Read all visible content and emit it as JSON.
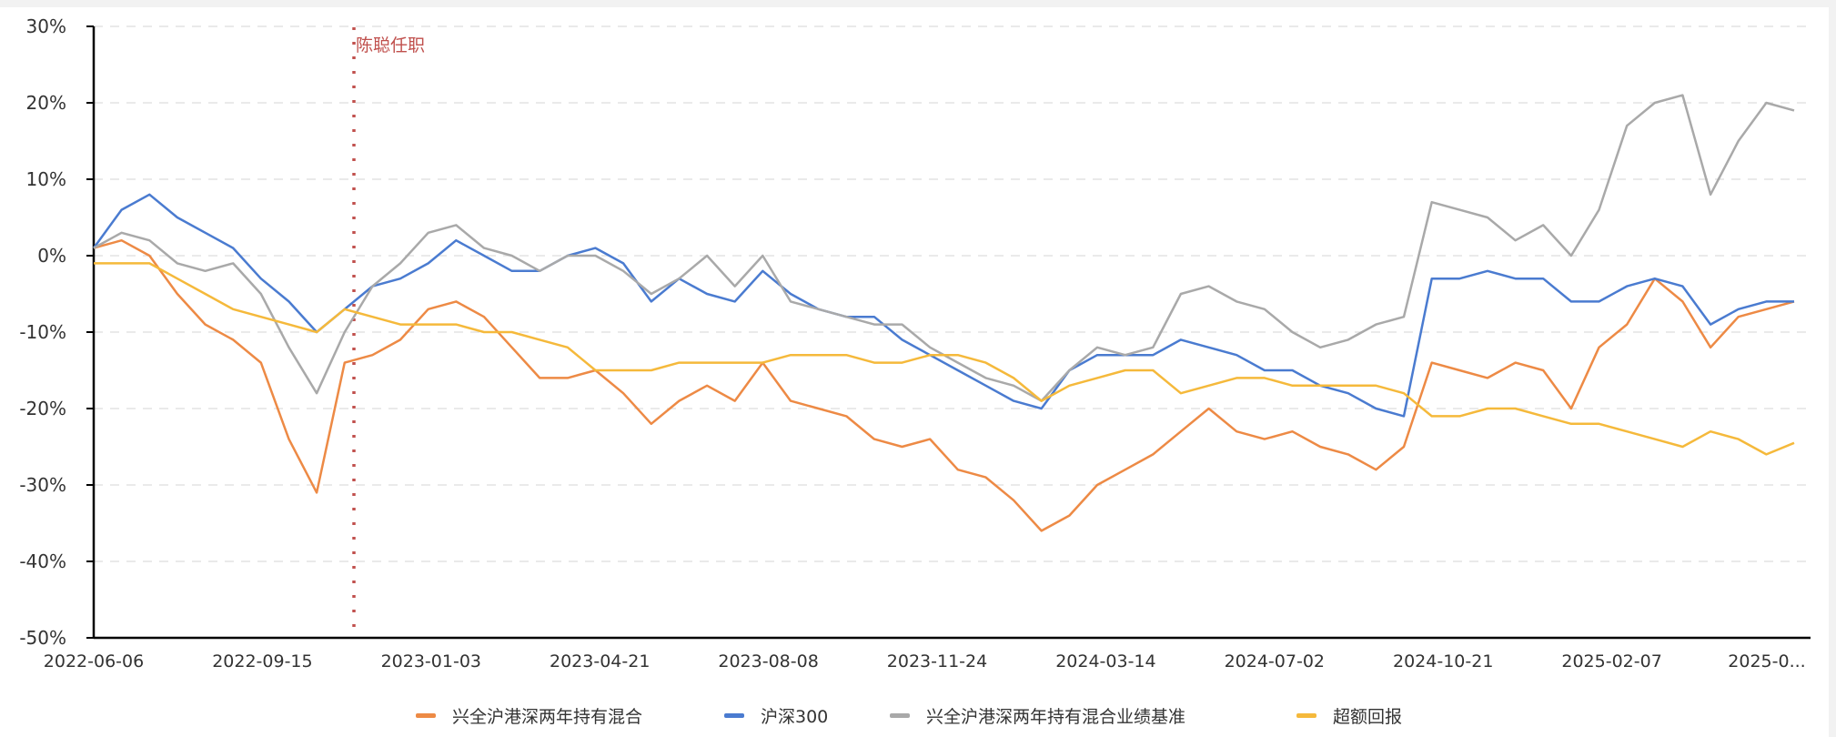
{
  "chart_data": {
    "type": "line",
    "title": "",
    "xlabel": "",
    "ylabel": "",
    "ylim": [
      -50,
      30
    ],
    "y_ticks": [
      "30%",
      "20%",
      "10%",
      "0%",
      "-10%",
      "-20%",
      "-30%",
      "-40%",
      "-50%"
    ],
    "y_tick_values": [
      30,
      20,
      10,
      0,
      -10,
      -20,
      -30,
      -40,
      -50
    ],
    "x_ticks": [
      "2022-06-06",
      "2022-09-15",
      "2023-01-03",
      "2023-04-21",
      "2023-08-08",
      "2023-11-24",
      "2024-03-14",
      "2024-07-02",
      "2024-10-21",
      "2025-02-07",
      "2025-0..."
    ],
    "grid": "horizontal dashed",
    "legend_position": "bottom",
    "annotation": {
      "label": "陈聪任职",
      "date": "2022-11",
      "color": "#c0504d",
      "style": "dotted vertical line"
    },
    "series": [
      {
        "name": "兴全沪港深两年持有混合",
        "color": "#ed8a45",
        "values": [
          1,
          2,
          0,
          -5,
          -9,
          -11,
          -14,
          -24,
          -31,
          -14,
          -13,
          -11,
          -7,
          -6,
          -8,
          -12,
          -16,
          -16,
          -15,
          -18,
          -22,
          -19,
          -17,
          -19,
          -14,
          -19,
          -20,
          -21,
          -24,
          -25,
          -24,
          -28,
          -29,
          -32,
          -36,
          -34,
          -30,
          -28,
          -26,
          -23,
          -20,
          -23,
          -24,
          -23,
          -25,
          -26,
          -28,
          -25,
          -14,
          -15,
          -16,
          -14,
          -15,
          -20,
          -12,
          -9,
          -3,
          -6,
          -12,
          -8,
          -7,
          -6
        ]
      },
      {
        "name": "沪深300",
        "color": "#4a7bd0",
        "values": [
          1,
          6,
          8,
          5,
          3,
          1,
          -3,
          -6,
          -10,
          -7,
          -4,
          -3,
          -1,
          2,
          0,
          -2,
          -2,
          0,
          1,
          -1,
          -6,
          -3,
          -5,
          -6,
          -2,
          -5,
          -7,
          -8,
          -8,
          -11,
          -13,
          -15,
          -17,
          -19,
          -20,
          -15,
          -13,
          -13,
          -13,
          -11,
          -12,
          -13,
          -15,
          -15,
          -17,
          -18,
          -20,
          -21,
          -3,
          -3,
          -2,
          -3,
          -3,
          -6,
          -6,
          -4,
          -3,
          -4,
          -9,
          -7,
          -6,
          -6
        ]
      },
      {
        "name": "兴全沪港深两年持有混合业绩基准",
        "color": "#a9a9a9",
        "values": [
          1,
          3,
          2,
          -1,
          -2,
          -1,
          -5,
          -12,
          -18,
          -10,
          -4,
          -1,
          3,
          4,
          1,
          0,
          -2,
          0,
          0,
          -2,
          -5,
          -3,
          0,
          -4,
          0,
          -6,
          -7,
          -8,
          -9,
          -9,
          -12,
          -14,
          -16,
          -17,
          -19,
          -15,
          -12,
          -13,
          -12,
          -5,
          -4,
          -6,
          -7,
          -10,
          -12,
          -11,
          -9,
          -8,
          7,
          6,
          5,
          2,
          4,
          0,
          6,
          17,
          20,
          21,
          8,
          15,
          20,
          19
        ]
      },
      {
        "name": "超额回报",
        "color": "#f5b93b",
        "values": [
          -1,
          -1,
          -1,
          -3,
          -5,
          -7,
          -8,
          -9,
          -10,
          -7,
          -8,
          -9,
          -9,
          -9,
          -10,
          -10,
          -11,
          -12,
          -15,
          -15,
          -15,
          -14,
          -14,
          -14,
          -14,
          -13,
          -13,
          -13,
          -14,
          -14,
          -13,
          -13,
          -14,
          -16,
          -19,
          -17,
          -16,
          -15,
          -15,
          -18,
          -17,
          -16,
          -16,
          -17,
          -17,
          -17,
          -17,
          -18,
          -21,
          -21,
          -20,
          -20,
          -21,
          -22,
          -22,
          -23,
          -24,
          -25,
          -23,
          -24,
          -26,
          -24.5
        ]
      }
    ]
  }
}
